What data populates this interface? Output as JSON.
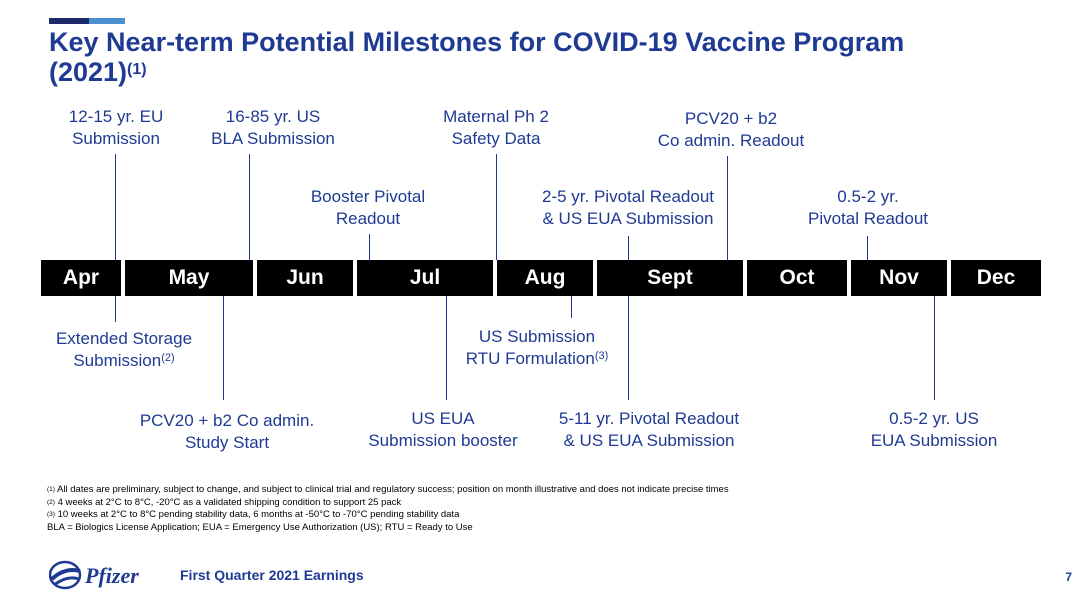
{
  "title": {
    "text": "Key Near-term Potential Milestones for COVID-19 Vaccine Program",
    "year": "(2021)",
    "note": "(1)"
  },
  "months": [
    "Apr",
    "May",
    "Jun",
    "Jul",
    "Aug",
    "Sept",
    "Oct",
    "Nov",
    "Dec"
  ],
  "milestones_above": {
    "eu": [
      "12-15 yr. EU",
      "Submission"
    ],
    "bla": [
      "16-85 yr. US",
      "BLA Submission"
    ],
    "booster": [
      "Booster Pivotal",
      "Readout"
    ],
    "maternal": [
      "Maternal Ph 2",
      "Safety Data"
    ],
    "pivotal25": [
      "2-5 yr. Pivotal Readout",
      "& US EUA Submission"
    ],
    "pcv20": [
      "PCV20 + b2",
      "Co admin. Readout"
    ],
    "pivotal052": [
      "0.5-2 yr.",
      "Pivotal Readout"
    ]
  },
  "milestones_below": {
    "storage": [
      "Extended Storage",
      "Submission",
      "(2)"
    ],
    "pcv20start": [
      "PCV20 + b2 Co admin.",
      "Study Start"
    ],
    "euabooster": [
      "US EUA",
      "Submission booster"
    ],
    "rtu": [
      "US Submission",
      "RTU Formulation",
      "(3)"
    ],
    "pivotal511": [
      "5-11 yr. Pivotal Readout",
      "& US EUA Submission"
    ],
    "eua052": [
      "0.5-2 yr. US",
      "EUA Submission"
    ]
  },
  "footnotes": {
    "f1_mark": "(1)",
    "f1": "All dates are preliminary, subject to change, and subject to clinical trial and regulatory success; position on month illustrative and does not indicate precise times",
    "f2_mark": "(2)",
    "f2": "4 weeks at 2°C to 8°C, -20°C as a validated shipping condition to support 25 pack",
    "f3_mark": "(3)",
    "f3": "10 weeks at 2°C to 8°C pending stability data, 6 months at -50°C to -70°C pending stability data",
    "abbrev": "BLA = Biologics License Application; EUA = Emergency Use Authorization (US); RTU = Ready to Use"
  },
  "footer": {
    "logo_text": "Pfizer",
    "text": "First Quarter 2021 Earnings",
    "page": "7"
  },
  "colors": {
    "brand": "#1f3a93",
    "accent": "#4a8fd1",
    "bar": "#000000"
  }
}
